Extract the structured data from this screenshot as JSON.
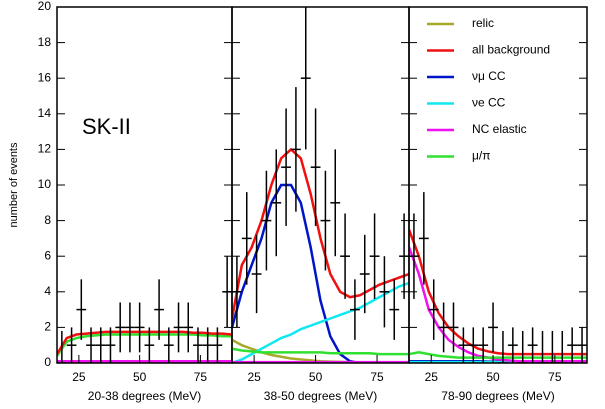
{
  "chart_data": [
    {
      "type": "line",
      "ylabel": "number of events",
      "annotation": "SK-II",
      "xlabel": "20-38 degrees (MeV)",
      "xlim": [
        16,
        88
      ],
      "xticks": [
        25,
        50,
        75
      ],
      "ylim": [
        0,
        20
      ],
      "yticks": [
        0,
        2,
        4,
        6,
        8,
        10,
        12,
        14,
        16,
        18,
        20
      ],
      "points": {
        "x": [
          18,
          22,
          26,
          30,
          34,
          38,
          42,
          46,
          50,
          54,
          58,
          62,
          66,
          70,
          74,
          78,
          82,
          86
        ],
        "values": [
          0,
          1,
          3,
          1,
          1,
          1,
          2,
          2,
          2,
          1,
          3,
          1,
          2,
          2,
          1,
          1,
          1,
          4
        ],
        "errors": [
          1.8,
          1,
          1.7,
          1,
          1,
          1,
          1.4,
          1.4,
          1.4,
          1,
          1.7,
          1,
          1.4,
          1.4,
          1,
          1,
          1,
          2
        ]
      },
      "x": [
        16,
        20,
        24,
        28,
        32,
        36,
        40,
        44,
        48,
        52,
        56,
        60,
        64,
        68,
        72,
        76,
        80,
        84,
        88
      ],
      "series": [
        {
          "color": "#a8a82a",
          "values": [
            0.05,
            0.05,
            0.04,
            0.04,
            0.03,
            0.03,
            0.03,
            0.02,
            0.02,
            0.02,
            0.02,
            0.02,
            0.01,
            0.01,
            0.01,
            0.01,
            0.01,
            0.01,
            0.01
          ]
        },
        {
          "color": "#0014c8",
          "values": [
            0.05,
            0.08,
            0.1,
            0.1,
            0.1,
            0.08,
            0.06,
            0.05,
            0.04,
            0.03,
            0.02,
            0.02,
            0.01,
            0.01,
            0.01,
            0.01,
            0.01,
            0.01,
            0.01
          ]
        },
        {
          "color": "#10e8f0",
          "values": [
            0.02,
            0.02,
            0.02,
            0.03,
            0.03,
            0.03,
            0.04,
            0.04,
            0.04,
            0.05,
            0.05,
            0.05,
            0.06,
            0.06,
            0.06,
            0.07,
            0.07,
            0.07,
            0.08
          ]
        },
        {
          "color": "#f010f0",
          "values": [
            0.1,
            0.1,
            0.1,
            0.1,
            0.1,
            0.1,
            0.1,
            0.1,
            0.1,
            0.1,
            0.1,
            0.1,
            0.1,
            0.1,
            0.1,
            0.1,
            0.1,
            0.1,
            0.1
          ]
        },
        {
          "color": "#30e030",
          "values": [
            0.4,
            1.2,
            1.4,
            1.5,
            1.55,
            1.6,
            1.6,
            1.6,
            1.6,
            1.6,
            1.6,
            1.6,
            1.6,
            1.6,
            1.6,
            1.55,
            1.55,
            1.5,
            1.5
          ]
        },
        {
          "color": "#f01010",
          "values": [
            0.5,
            1.4,
            1.6,
            1.65,
            1.7,
            1.75,
            1.75,
            1.75,
            1.75,
            1.75,
            1.75,
            1.75,
            1.75,
            1.75,
            1.7,
            1.7,
            1.65,
            1.65,
            1.6
          ]
        }
      ]
    },
    {
      "type": "line",
      "xlabel": "38-50 degrees (MeV)",
      "xlim": [
        16,
        88
      ],
      "xticks": [
        25,
        50,
        75
      ],
      "ylim": [
        0,
        20
      ],
      "points": {
        "x": [
          18,
          22,
          26,
          30,
          34,
          38,
          42,
          46,
          50,
          54,
          58,
          62,
          66,
          70,
          74,
          78,
          82,
          86
        ],
        "values": [
          4,
          7,
          5,
          8,
          9,
          11,
          12,
          16,
          11,
          8,
          9,
          6,
          3,
          5,
          6,
          4,
          3,
          6
        ],
        "errors": [
          2,
          2.6,
          2.2,
          2.8,
          3,
          3.3,
          3.5,
          4,
          3.3,
          2.8,
          3,
          2.4,
          1.7,
          2.2,
          2.4,
          2,
          1.7,
          2.4
        ]
      },
      "x": [
        16,
        20,
        24,
        28,
        32,
        36,
        40,
        44,
        48,
        52,
        56,
        60,
        64,
        68,
        72,
        76,
        80,
        84,
        88
      ],
      "series": [
        {
          "color": "#a8a82a",
          "values": [
            1.3,
            1.0,
            0.8,
            0.6,
            0.45,
            0.35,
            0.25,
            0.2,
            0.15,
            0.1,
            0.08,
            0.06,
            0.05,
            0.04,
            0.03,
            0.03,
            0.02,
            0.02,
            0.02
          ]
        },
        {
          "color": "#0014c8",
          "values": [
            2,
            4,
            5.5,
            7,
            9,
            10,
            10,
            9,
            6.5,
            3.5,
            1.5,
            0.5,
            0.1,
            0,
            0,
            0,
            0,
            0,
            0
          ]
        },
        {
          "color": "#10e8f0",
          "values": [
            0,
            0.2,
            0.5,
            0.8,
            1.1,
            1.4,
            1.6,
            1.9,
            2.1,
            2.3,
            2.5,
            2.7,
            2.9,
            3.1,
            3.4,
            3.7,
            4.0,
            4.3,
            4.5
          ]
        },
        {
          "color": "#f010f0",
          "values": [
            0.05,
            0.05,
            0.05,
            0.05,
            0.05,
            0.05,
            0.05,
            0.05,
            0.05,
            0.05,
            0.05,
            0.05,
            0.05,
            0.05,
            0.05,
            0.05,
            0.05,
            0.05,
            0.05
          ]
        },
        {
          "color": "#30e030",
          "values": [
            0.8,
            0.7,
            0.65,
            0.6,
            0.6,
            0.6,
            0.6,
            0.6,
            0.6,
            0.6,
            0.55,
            0.55,
            0.55,
            0.55,
            0.55,
            0.5,
            0.5,
            0.5,
            0.5
          ]
        },
        {
          "color": "#f01010",
          "values": [
            2.5,
            5.5,
            6.5,
            8,
            10,
            11.5,
            12,
            11.5,
            9.5,
            7,
            5,
            4,
            3.7,
            3.8,
            4.1,
            4.4,
            4.6,
            4.8,
            5.0
          ]
        }
      ]
    },
    {
      "type": "line",
      "xlabel": "78-90 degrees (MeV)",
      "xlim": [
        16,
        88
      ],
      "xticks": [
        25,
        50,
        75
      ],
      "ylim": [
        0,
        20
      ],
      "points": {
        "x": [
          18,
          22,
          26,
          30,
          34,
          38,
          42,
          46,
          50,
          54,
          58,
          62,
          66,
          70,
          74,
          78,
          82,
          86
        ],
        "values": [
          6,
          7,
          3,
          2,
          2,
          1,
          1,
          1,
          2,
          0,
          1,
          0,
          1,
          0,
          0,
          0,
          1,
          1
        ],
        "errors": [
          2.4,
          2.6,
          1.7,
          1.4,
          1.4,
          1,
          1,
          1,
          1.4,
          1.8,
          1,
          1.8,
          1,
          1.8,
          1.8,
          1.8,
          1,
          1
        ]
      },
      "x": [
        16,
        20,
        24,
        28,
        32,
        36,
        40,
        44,
        48,
        52,
        56,
        60,
        64,
        68,
        72,
        76,
        80,
        84,
        88
      ],
      "series": [
        {
          "name": "relic",
          "color": "#a8a82a",
          "values": [
            0.05,
            0.05,
            0.05,
            0.05,
            0.04,
            0.04,
            0.03,
            0.03,
            0.03,
            0.02,
            0.02,
            0.02,
            0.02,
            0.02,
            0.01,
            0.01,
            0.01,
            0.01,
            0.01
          ]
        },
        {
          "name": "all background",
          "color": "#f01010",
          "values": [
            7.5,
            6,
            4,
            2.8,
            2,
            1.5,
            1.1,
            0.8,
            0.65,
            0.55,
            0.5,
            0.5,
            0.5,
            0.5,
            0.5,
            0.5,
            0.5,
            0.5,
            0.5
          ]
        },
        {
          "name": "νμ CC",
          "color": "#0014c8",
          "values": [
            0.1,
            0.1,
            0.1,
            0.1,
            0.1,
            0.1,
            0.1,
            0.1,
            0.08,
            0.08,
            0.06,
            0.05,
            0.05,
            0.04,
            0.04,
            0.03,
            0.03,
            0.03,
            0.03
          ]
        },
        {
          "name": "νe CC",
          "color": "#10e8f0",
          "values": [
            0.05,
            0.05,
            0.05,
            0.05,
            0.05,
            0.05,
            0.05,
            0.05,
            0.05,
            0.05,
            0.05,
            0.05,
            0.05,
            0.05,
            0.05,
            0.05,
            0.05,
            0.05,
            0.05
          ]
        },
        {
          "name": "NC elastic",
          "color": "#f010f0",
          "values": [
            6.5,
            5,
            3,
            2,
            1.3,
            0.9,
            0.6,
            0.4,
            0.3,
            0.2,
            0.15,
            0.1,
            0.1,
            0.1,
            0.1,
            0.1,
            0.1,
            0.1,
            0.1
          ]
        },
        {
          "name": "μ/π",
          "color": "#30e030",
          "values": [
            0.5,
            0.6,
            0.5,
            0.4,
            0.35,
            0.3,
            0.3,
            0.3,
            0.3,
            0.3,
            0.3,
            0.3,
            0.3,
            0.3,
            0.3,
            0.3,
            0.3,
            0.3,
            0.3
          ]
        }
      ]
    }
  ]
}
